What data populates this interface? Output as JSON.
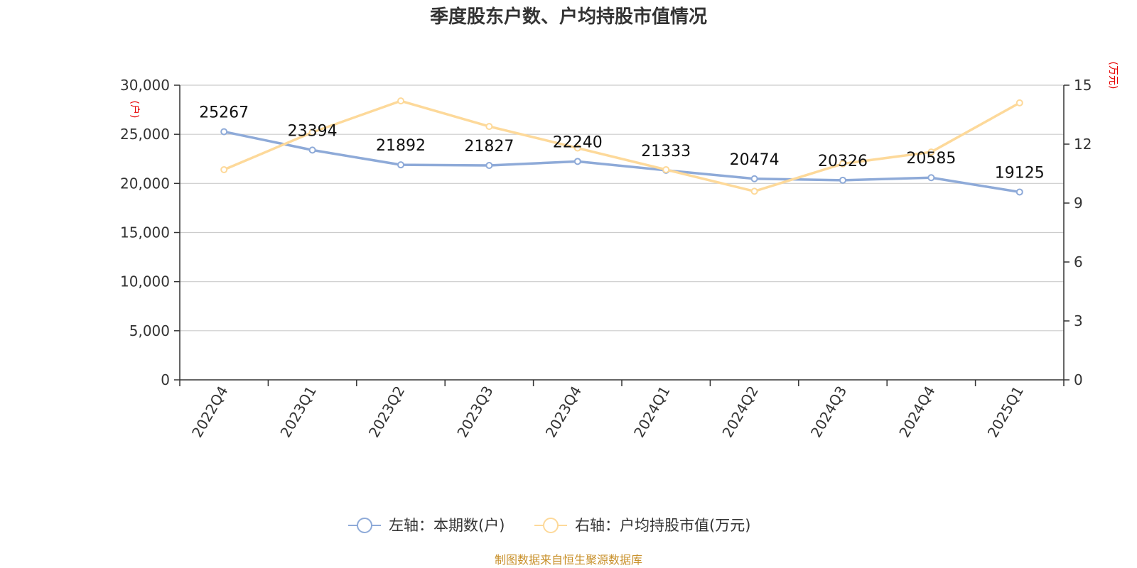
{
  "chart_data": {
    "type": "line",
    "title": "季度股东户数、户均持股市值情况",
    "categories": [
      "2022Q4",
      "2023Q1",
      "2023Q2",
      "2023Q3",
      "2023Q4",
      "2024Q1",
      "2024Q2",
      "2024Q3",
      "2024Q4",
      "2025Q1"
    ],
    "left_axis": {
      "unit": "(户)",
      "ylim": [
        0,
        30000
      ],
      "ticks": [
        0,
        5000,
        10000,
        15000,
        20000,
        25000,
        30000
      ],
      "tick_labels": [
        "0",
        "5,000",
        "10,000",
        "15,000",
        "20,000",
        "25,000",
        "30,000"
      ]
    },
    "right_axis": {
      "unit": "(万元)",
      "ylim": [
        0,
        15
      ],
      "ticks": [
        0,
        3,
        6,
        9,
        12,
        15
      ],
      "tick_labels": [
        "0",
        "3",
        "6",
        "9",
        "12",
        "15"
      ]
    },
    "grid": true,
    "legend_position": "bottom",
    "series": [
      {
        "name": "左轴：本期数(户)",
        "axis": "left",
        "color": "#8eaad8",
        "values": [
          25267,
          23394,
          21892,
          21827,
          22240,
          21333,
          20474,
          20326,
          20585,
          19125
        ],
        "data_labels": [
          "25267",
          "23394",
          "21892",
          "21827",
          "22240",
          "21333",
          "20474",
          "20326",
          "20585",
          "19125"
        ]
      },
      {
        "name": "右轴：户均持股市值(万元)",
        "axis": "right",
        "color": "#fdd99a",
        "values": [
          10.7,
          12.6,
          14.2,
          12.9,
          11.8,
          10.7,
          9.6,
          11.0,
          11.6,
          14.1
        ]
      }
    ],
    "source": "制图数据来自恒生聚源数据库"
  }
}
